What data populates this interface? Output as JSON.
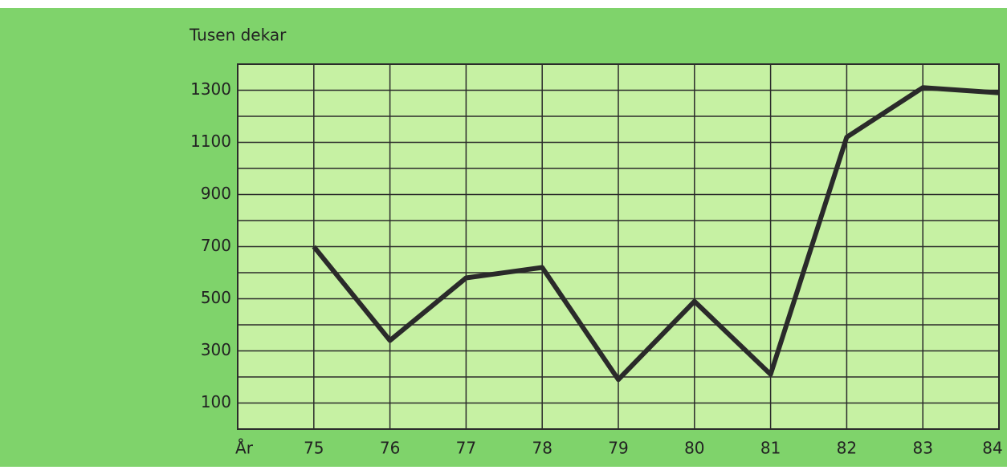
{
  "chart_data": {
    "type": "line",
    "title": "Tusen dekar",
    "x_label": "År",
    "x": [
      75,
      76,
      77,
      78,
      79,
      80,
      81,
      82,
      83,
      84
    ],
    "series": [
      {
        "name": "Tusen dekar",
        "color": "#2a2a2a",
        "values": [
          700,
          340,
          580,
          620,
          190,
          490,
          210,
          1120,
          1310,
          1290
        ]
      }
    ],
    "xlim": [
      74,
      84
    ],
    "xticks": [
      75,
      76,
      77,
      78,
      79,
      80,
      81,
      82,
      83,
      84
    ],
    "ylim": [
      0,
      1400
    ],
    "yticks": [
      100,
      300,
      500,
      700,
      900,
      1100,
      1300
    ],
    "grid": true,
    "background": "#7fd36b",
    "plot_background": "#c6f1a3"
  }
}
